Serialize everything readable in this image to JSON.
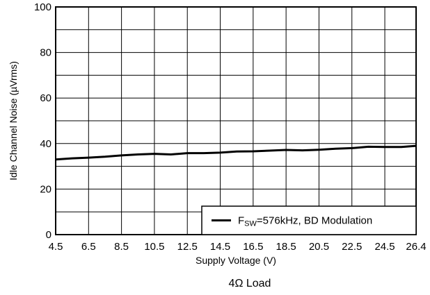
{
  "chart_data": {
    "type": "line",
    "title": "",
    "caption": "4Ω Load",
    "xlabel": "Supply Voltage (V)",
    "ylabel": "Idle Channel Noise (µVrms)",
    "xlim": [
      4.5,
      26.4
    ],
    "ylim": [
      0,
      100
    ],
    "x_ticks": [
      "4.5",
      "6.5",
      "8.5",
      "10.5",
      "12.5",
      "14.5",
      "16.5",
      "18.5",
      "20.5",
      "22.5",
      "24.5",
      "26.4"
    ],
    "y_ticks": [
      "0",
      "20",
      "40",
      "60",
      "80",
      "100"
    ],
    "grid": true,
    "legend_position": "bottom-right",
    "legend": {
      "prefix": "F",
      "subscript": "SW",
      "suffix": "=576kHz, BD Modulation"
    },
    "series": [
      {
        "name": "FSW=576kHz, BD Modulation",
        "color": "#000000",
        "x": [
          4.5,
          5.5,
          6.5,
          7.5,
          8.5,
          9.5,
          10.5,
          11.5,
          12.5,
          13.5,
          14.5,
          15.5,
          16.5,
          17.5,
          18.5,
          19.5,
          20.5,
          21.5,
          22.5,
          23.5,
          24.5,
          25.5,
          26.4
        ],
        "y": [
          33,
          33.5,
          33.8,
          34.2,
          34.8,
          35.2,
          35.5,
          35.2,
          35.8,
          35.8,
          36.0,
          36.5,
          36.6,
          36.9,
          37.2,
          37.0,
          37.3,
          37.7,
          38.0,
          38.6,
          38.5,
          38.5,
          39.0
        ]
      }
    ]
  }
}
